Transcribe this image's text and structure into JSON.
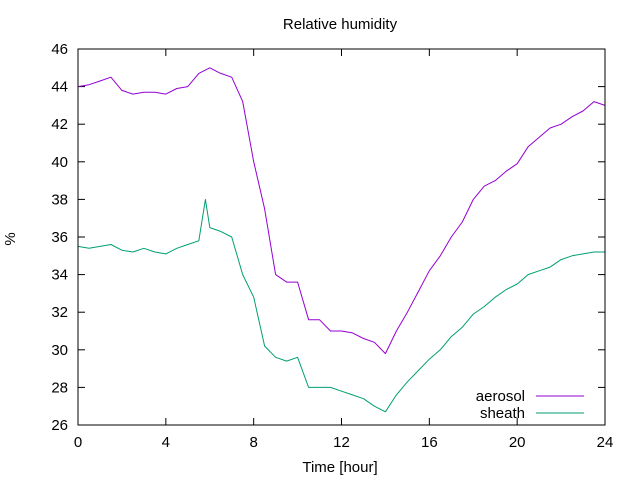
{
  "chart_data": {
    "type": "line",
    "title": "Relative humidity",
    "xlabel": "Time [hour]",
    "ylabel": "%",
    "xlim": [
      0,
      24
    ],
    "ylim": [
      26,
      46
    ],
    "xticks": [
      0,
      4,
      8,
      12,
      16,
      20,
      24
    ],
    "yticks": [
      26,
      28,
      30,
      32,
      34,
      36,
      38,
      40,
      42,
      44,
      46
    ],
    "grid": false,
    "legend_position": "bottom-right",
    "series": [
      {
        "name": "aerosol",
        "color": "#9400d3",
        "x": [
          0,
          0.5,
          1,
          1.5,
          2,
          2.5,
          3,
          3.5,
          4,
          4.5,
          5,
          5.5,
          6,
          6.5,
          7,
          7.5,
          8,
          8.5,
          9,
          9.5,
          10,
          10.5,
          11,
          11.5,
          12,
          12.5,
          13,
          13.5,
          14,
          14.5,
          15,
          15.5,
          16,
          16.5,
          17,
          17.5,
          18,
          18.5,
          19,
          19.5,
          20,
          20.5,
          21,
          21.5,
          22,
          22.5,
          23,
          23.5,
          24
        ],
        "y": [
          44.0,
          44.1,
          44.3,
          44.5,
          43.8,
          43.6,
          43.7,
          43.7,
          43.6,
          43.9,
          44.0,
          44.7,
          45.0,
          44.7,
          44.5,
          43.2,
          40.0,
          37.5,
          34.0,
          33.6,
          33.6,
          31.6,
          31.6,
          31.0,
          31.0,
          30.9,
          30.6,
          30.4,
          29.8,
          31.0,
          32.0,
          33.1,
          34.2,
          35.0,
          36.0,
          36.8,
          38.0,
          38.7,
          39.0,
          39.5,
          39.9,
          40.8,
          41.3,
          41.8,
          42.0,
          42.4,
          42.7,
          43.2,
          43.0
        ]
      },
      {
        "name": "sheath",
        "color": "#009e73",
        "x": [
          0,
          0.5,
          1,
          1.5,
          2,
          2.5,
          3,
          3.5,
          4,
          4.5,
          5,
          5.5,
          5.8,
          6,
          6.5,
          7,
          7.5,
          8,
          8.5,
          9,
          9.5,
          10,
          10.5,
          11,
          11.5,
          12,
          12.5,
          13,
          13.5,
          14,
          14.5,
          15,
          15.5,
          16,
          16.5,
          17,
          17.5,
          18,
          18.5,
          19,
          19.5,
          20,
          20.5,
          21,
          21.5,
          22,
          22.5,
          23,
          23.5,
          24
        ],
        "y": [
          35.5,
          35.4,
          35.5,
          35.6,
          35.3,
          35.2,
          35.4,
          35.2,
          35.1,
          35.4,
          35.6,
          35.8,
          38.0,
          36.5,
          36.3,
          36.0,
          34.0,
          32.8,
          30.2,
          29.6,
          29.4,
          29.6,
          28.0,
          28.0,
          28.0,
          27.8,
          27.6,
          27.4,
          27.0,
          26.7,
          27.6,
          28.3,
          28.9,
          29.5,
          30.0,
          30.7,
          31.2,
          31.9,
          32.3,
          32.8,
          33.2,
          33.5,
          34.0,
          34.2,
          34.4,
          34.8,
          35.0,
          35.1,
          35.2,
          35.2
        ]
      }
    ]
  }
}
